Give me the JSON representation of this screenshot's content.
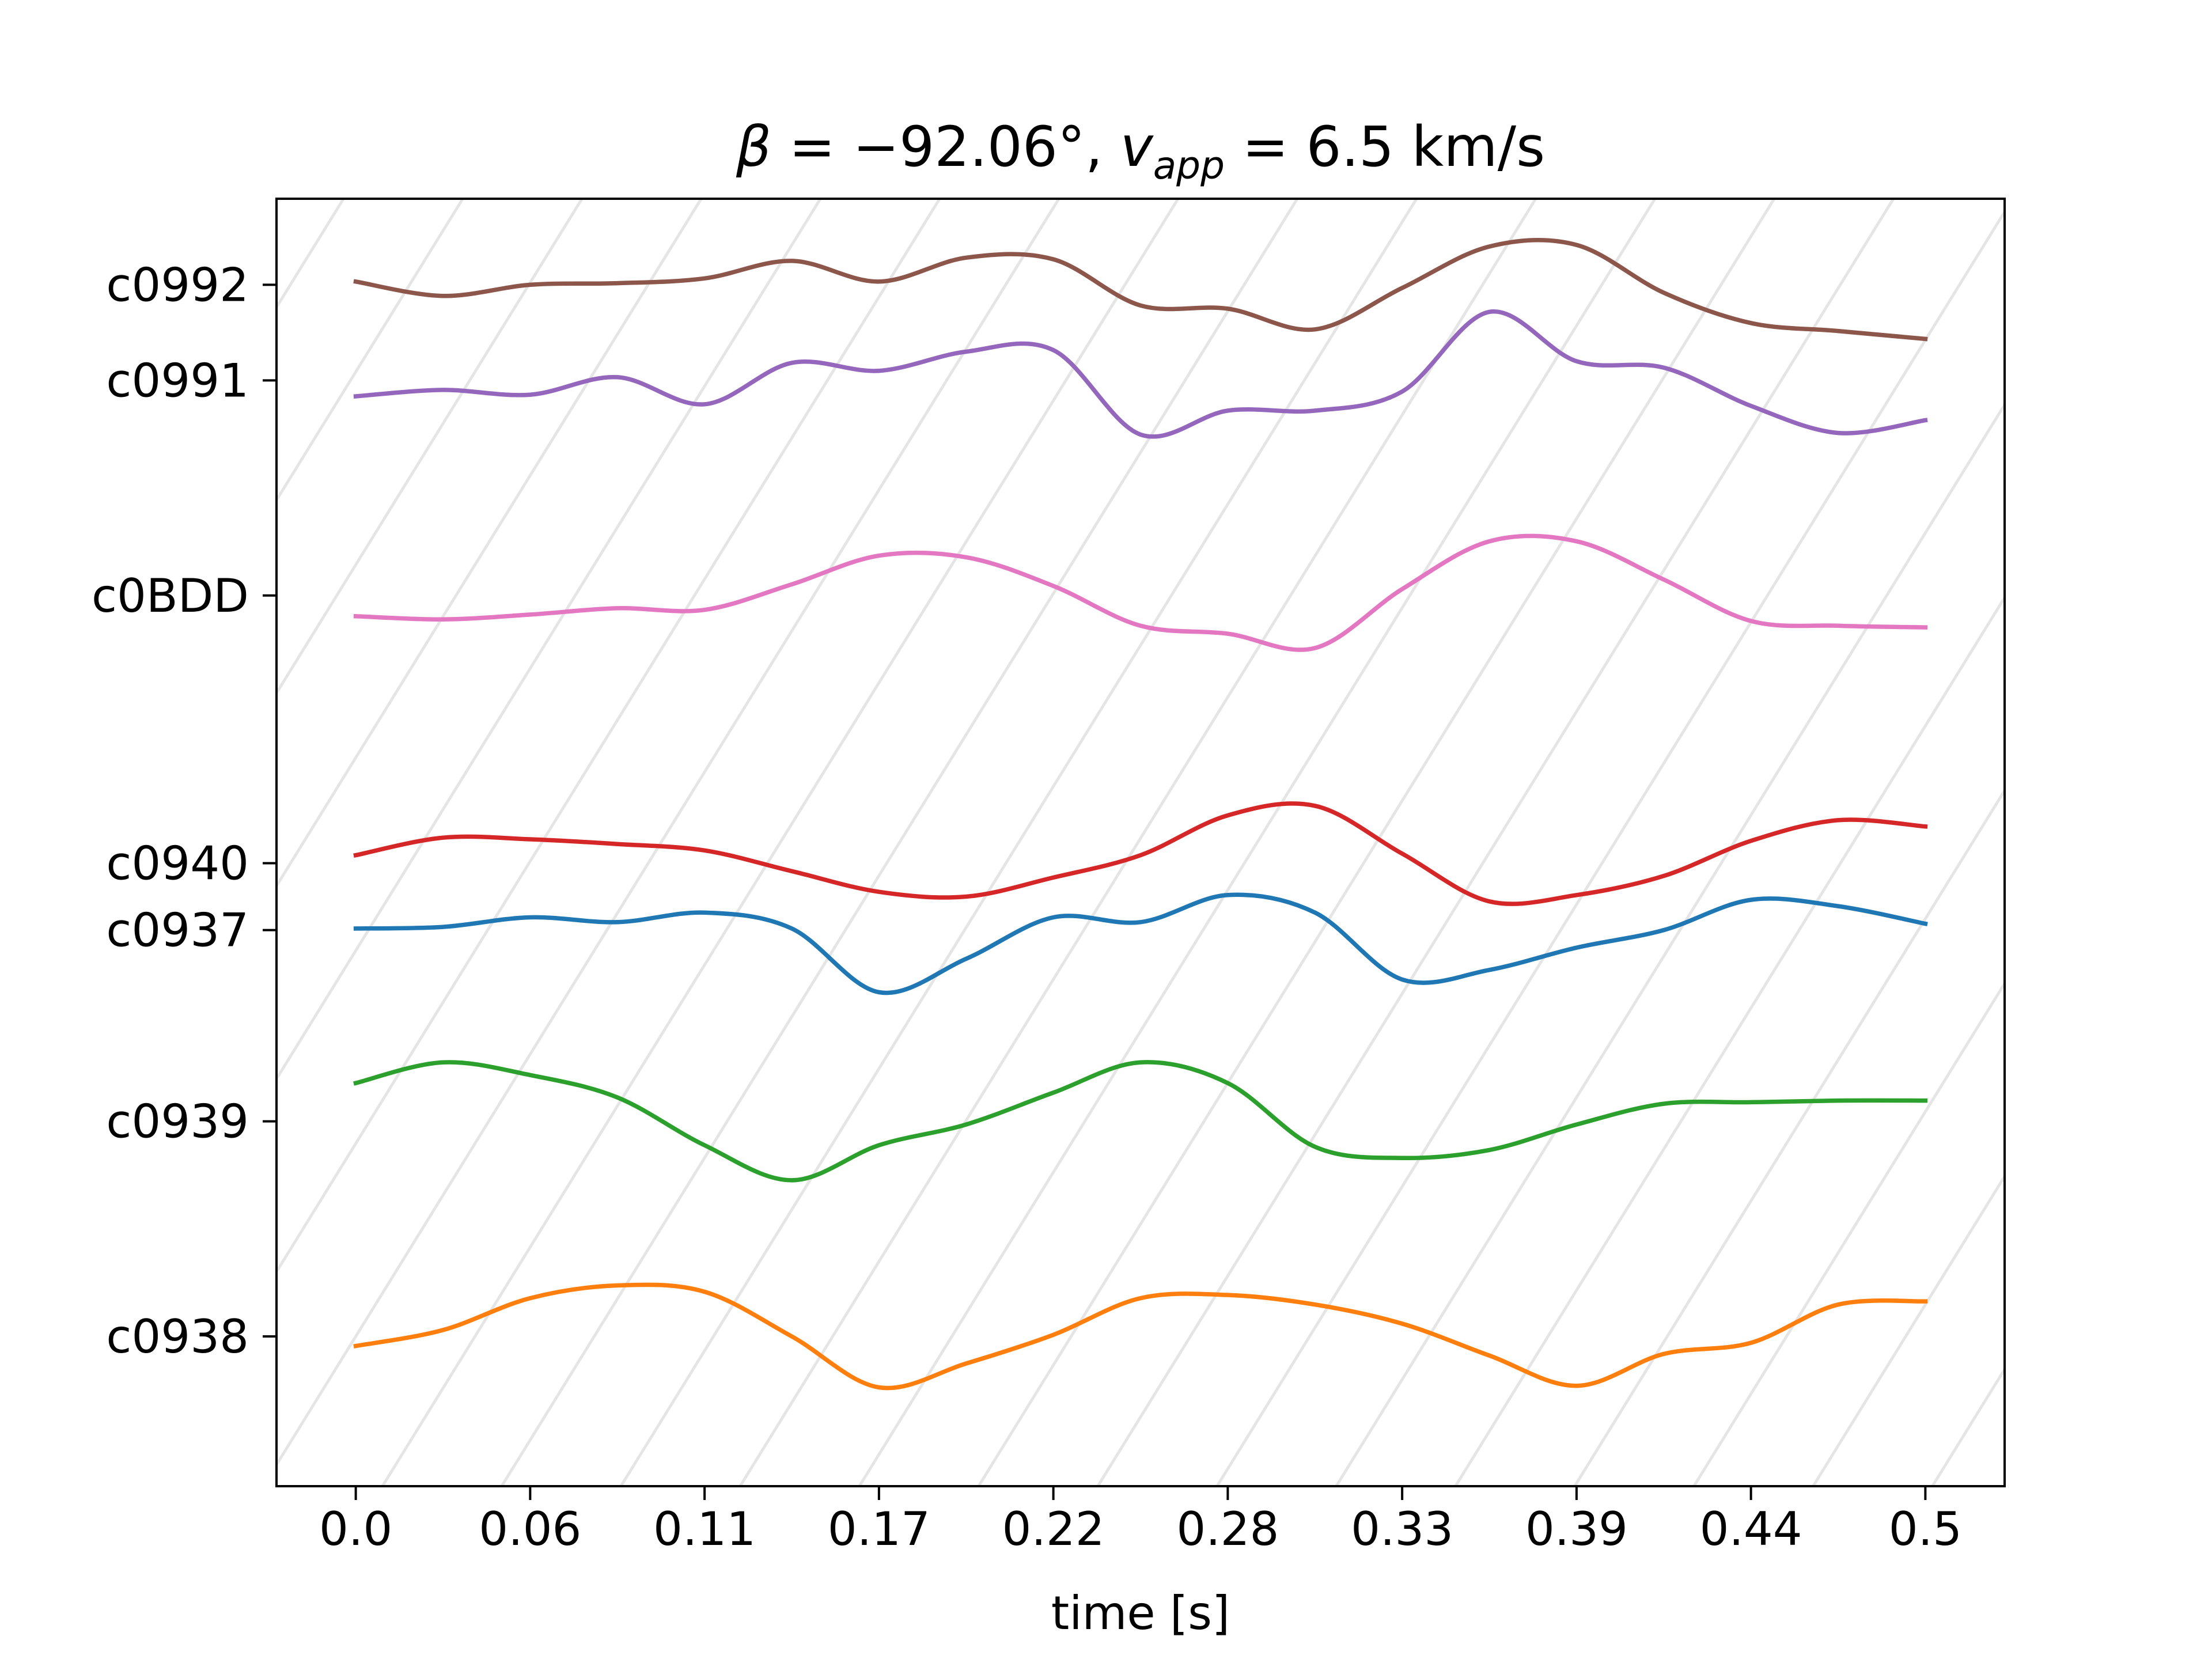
{
  "chart_data": {
    "type": "line",
    "title": "β = −92.06°, v_app = 6.5 km/s",
    "title_parts": {
      "beta_symbol": "β",
      "beta_eq": " = −92.06°, ",
      "v_symbol": "v",
      "v_sub": "app",
      "v_eq": " = 6.5 km/s"
    },
    "xlabel": "time [s]",
    "ylabel": "",
    "xlim": [
      -0.025,
      0.52
    ],
    "ylim": [
      -0.94,
      7.14
    ],
    "x_ticks": [
      0.0,
      0.055,
      0.11,
      0.165,
      0.22,
      0.275,
      0.33,
      0.385,
      0.44,
      0.495
    ],
    "x_tick_labels": [
      "0.0",
      "0.06",
      "0.11",
      "0.17",
      "0.22",
      "0.28",
      "0.33",
      "0.39",
      "0.44",
      "0.5"
    ],
    "y_ticks": [
      0,
      1.35,
      2.55,
      2.97,
      4.65,
      6.0,
      6.6
    ],
    "y_tick_labels": [
      "c0938",
      "c0939",
      "c0937",
      "c0940",
      "c0BDD",
      "c0991",
      "c0992"
    ],
    "grid": false,
    "guide_lines": {
      "slope_per_second": 32.2,
      "spacing_s": 0.0376,
      "color": "#e5e5e5"
    },
    "x": [
      0.0,
      0.0275,
      0.055,
      0.0825,
      0.11,
      0.1375,
      0.165,
      0.1925,
      0.22,
      0.2475,
      0.275,
      0.3025,
      0.33,
      0.3575,
      0.385,
      0.4125,
      0.44,
      0.4675,
      0.495
    ],
    "series": [
      {
        "color": "#1f77b4",
        "baseline": 2.55,
        "values": [
          2.56,
          2.57,
          2.63,
          2.6,
          2.66,
          2.56,
          2.16,
          2.37,
          2.63,
          2.6,
          2.77,
          2.66,
          2.24,
          2.3,
          2.44,
          2.55,
          2.74,
          2.7,
          2.59
        ]
      },
      {
        "color": "#ff7f0e",
        "baseline": 0.0,
        "values": [
          -0.06,
          0.04,
          0.24,
          0.32,
          0.28,
          0.0,
          -0.32,
          -0.17,
          0.01,
          0.24,
          0.26,
          0.2,
          0.08,
          -0.12,
          -0.31,
          -0.11,
          -0.04,
          0.2,
          0.22
        ]
      },
      {
        "color": "#2ca02c",
        "baseline": 1.35,
        "values": [
          1.59,
          1.72,
          1.64,
          1.5,
          1.2,
          0.98,
          1.2,
          1.33,
          1.53,
          1.72,
          1.59,
          1.19,
          1.12,
          1.17,
          1.33,
          1.46,
          1.47,
          1.48,
          1.48
        ]
      },
      {
        "color": "#d62728",
        "baseline": 2.97,
        "values": [
          3.02,
          3.13,
          3.12,
          3.09,
          3.05,
          2.92,
          2.79,
          2.76,
          2.88,
          3.02,
          3.27,
          3.33,
          3.03,
          2.73,
          2.77,
          2.89,
          3.11,
          3.24,
          3.2
        ]
      },
      {
        "color": "#9467bd",
        "baseline": 6.0,
        "values": [
          5.9,
          5.94,
          5.91,
          6.02,
          5.85,
          6.11,
          6.06,
          6.18,
          6.19,
          5.66,
          5.81,
          5.81,
          5.93,
          6.43,
          6.12,
          6.08,
          5.84,
          5.67,
          5.75
        ]
      },
      {
        "color": "#8c564b",
        "baseline": 6.6,
        "values": [
          6.62,
          6.53,
          6.6,
          6.61,
          6.64,
          6.75,
          6.62,
          6.77,
          6.76,
          6.47,
          6.45,
          6.32,
          6.58,
          6.84,
          6.85,
          6.55,
          6.36,
          6.31,
          6.26
        ]
      },
      {
        "color": "#e377c2",
        "baseline": 4.65,
        "values": [
          4.52,
          4.5,
          4.53,
          4.57,
          4.56,
          4.72,
          4.9,
          4.89,
          4.71,
          4.46,
          4.41,
          4.32,
          4.69,
          4.99,
          4.99,
          4.75,
          4.49,
          4.46,
          4.45
        ]
      }
    ]
  }
}
